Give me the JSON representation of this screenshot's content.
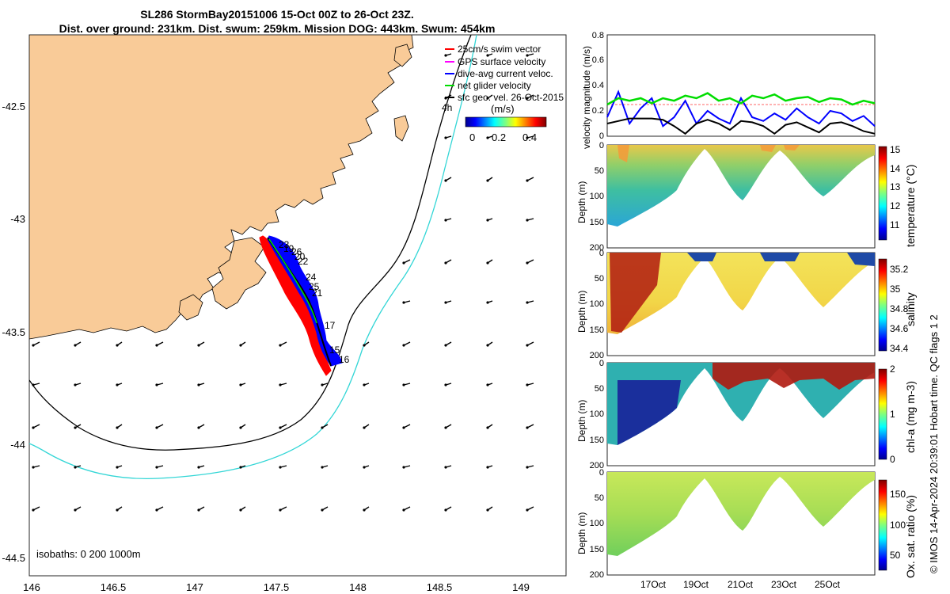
{
  "header": {
    "line1": "SL286 StormBay20151006 15-Oct 00Z to 26-Oct 23Z.",
    "line2": "Dist. over ground: 231km. Dist. swum: 259km. Mission DOG: 443km. Swum: 454km"
  },
  "footer": {
    "credit": "© IMOS 14-Apr-2024 20:39:01 Hobart time. QC flags 1  2"
  },
  "map": {
    "legend": [
      {
        "label": "25cm/s swim vector",
        "color": "#ff0000"
      },
      {
        "label": "GPS surface velocity",
        "color": "#ff00ff"
      },
      {
        "label": "dive-avg current veloc.",
        "color": "#0000ff"
      },
      {
        "label": "net glider velocity",
        "color": "#00dd00"
      },
      {
        "label": "sfc geo. vel. 26-Oct-2015",
        "color": "#000000"
      }
    ],
    "colorbar_title": "(m/s)",
    "colorbar_ticks": [
      "0",
      "0.2",
      "0.4"
    ],
    "isobaths_label": "isobaths: 0   200   1000m",
    "track_labels": [
      "4h",
      "23",
      "19",
      "26",
      "20",
      "22",
      "24",
      "25",
      "21",
      "17",
      "15",
      "16"
    ],
    "land_color": "#f9cb98",
    "isobath_200_color": "#000000",
    "isobath_1000_color": "#33d6d6"
  },
  "chart_data": [
    {
      "type": "line",
      "panel": "map",
      "xlabel": "",
      "ylabel": "",
      "xlim": [
        146,
        149.2
      ],
      "ylim": [
        -44.55,
        -42.2
      ],
      "x_ticks": [
        "146",
        "146.5",
        "147",
        "147.5",
        "148",
        "148.5",
        "149"
      ],
      "y_ticks": [
        "-42.5",
        "-43",
        "-43.5",
        "-44",
        "-44.5"
      ],
      "series": [
        {
          "name": "",
          "x": [
            147.43,
            147.46,
            147.5,
            147.55,
            147.6,
            147.66,
            147.7,
            147.73,
            147.76,
            147.8,
            147.82,
            147.85
          ],
          "y": [
            -43.08,
            -43.12,
            -43.17,
            -43.24,
            -43.31,
            -43.38,
            -43.44,
            -43.5,
            -43.54,
            -43.6,
            -43.64,
            -43.66
          ]
        }
      ]
    },
    {
      "type": "line",
      "panel": "velocity",
      "ylabel": "velocity magnitude (m/s)",
      "ylim": [
        0,
        0.8
      ],
      "xlim": [
        15,
        27
      ],
      "y_ticks": [
        "0",
        "0.2",
        "0.4",
        "0.6",
        "0.8"
      ],
      "series": [
        {
          "name": "",
          "color": "#0000ff",
          "x": [
            15,
            15.5,
            16,
            16.5,
            17,
            17.5,
            18,
            18.5,
            19,
            19.5,
            20,
            20.5,
            21,
            21.5,
            22,
            22.5,
            23,
            23.5,
            24,
            24.5,
            25,
            25.5,
            26,
            26.5,
            27
          ],
          "y": [
            0.15,
            0.35,
            0.1,
            0.22,
            0.3,
            0.08,
            0.15,
            0.28,
            0.1,
            0.2,
            0.14,
            0.1,
            0.3,
            0.15,
            0.12,
            0.18,
            0.13,
            0.22,
            0.15,
            0.1,
            0.2,
            0.18,
            0.12,
            0.16,
            0.08
          ]
        },
        {
          "name": "",
          "color": "#00dd00",
          "x": [
            15,
            15.5,
            16,
            16.5,
            17,
            17.5,
            18,
            18.5,
            19,
            19.5,
            20,
            20.5,
            21,
            21.5,
            22,
            22.5,
            23,
            23.5,
            24,
            24.5,
            25,
            25.5,
            26,
            26.5,
            27
          ],
          "y": [
            0.25,
            0.3,
            0.28,
            0.3,
            0.26,
            0.3,
            0.28,
            0.32,
            0.3,
            0.34,
            0.28,
            0.3,
            0.26,
            0.32,
            0.3,
            0.33,
            0.28,
            0.3,
            0.31,
            0.27,
            0.3,
            0.29,
            0.25,
            0.28,
            0.26
          ]
        },
        {
          "name": "",
          "color": "#000000",
          "x": [
            15,
            15.5,
            16,
            16.5,
            17,
            17.5,
            18,
            18.5,
            19,
            19.5,
            20,
            20.5,
            21,
            21.5,
            22,
            22.5,
            23,
            23.5,
            24,
            24.5,
            25,
            25.5,
            26,
            26.5,
            27
          ],
          "y": [
            0.1,
            0.12,
            0.14,
            0.14,
            0.14,
            0.13,
            0.08,
            0.02,
            0.1,
            0.13,
            0.1,
            0.05,
            0.12,
            0.11,
            0.08,
            0.02,
            0.09,
            0.11,
            0.07,
            0.03,
            0.1,
            0.11,
            0.08,
            0.04,
            0.02
          ]
        }
      ],
      "reference_line": {
        "value": 0.25,
        "color": "#ff6666"
      }
    },
    {
      "type": "heatmap",
      "panel": "temperature",
      "ylabel": "Depth (m)",
      "ylim": [
        200,
        0
      ],
      "y_ticks": [
        "0",
        "50",
        "100",
        "150",
        "200"
      ],
      "colorbar_label": "temperature (°C)",
      "colorbar_ticks": [
        "11",
        "12",
        "13",
        "14",
        "15"
      ],
      "clim": [
        10.5,
        15
      ]
    },
    {
      "type": "heatmap",
      "panel": "salinity",
      "ylabel": "Depth (m)",
      "ylim": [
        200,
        0
      ],
      "y_ticks": [
        "0",
        "50",
        "100",
        "150",
        "200"
      ],
      "colorbar_label": "salinity",
      "colorbar_ticks": [
        "34.4",
        "34.6",
        "34.8",
        "35",
        "35.2"
      ],
      "clim": [
        34.35,
        35.3
      ]
    },
    {
      "type": "heatmap",
      "panel": "chl-a",
      "ylabel": "Depth (m)",
      "ylim": [
        200,
        0
      ],
      "y_ticks": [
        "0",
        "50",
        "100",
        "150",
        "200"
      ],
      "colorbar_label": "chl-a (mg m-3)",
      "colorbar_ticks": [
        "0",
        "1",
        "2"
      ],
      "clim": [
        0,
        2
      ]
    },
    {
      "type": "heatmap",
      "panel": "oxygen",
      "ylabel": "Depth (m)",
      "ylim": [
        200,
        0
      ],
      "y_ticks": [
        "0",
        "50",
        "100",
        "150",
        "200"
      ],
      "x_ticks": [
        "17Oct",
        "19Oct",
        "21Oct",
        "23Oct",
        "25Oct"
      ],
      "colorbar_label": "Ox. sat. ratio (%)",
      "colorbar_ticks": [
        "50",
        "100",
        "150"
      ],
      "clim": [
        20,
        175
      ]
    }
  ]
}
